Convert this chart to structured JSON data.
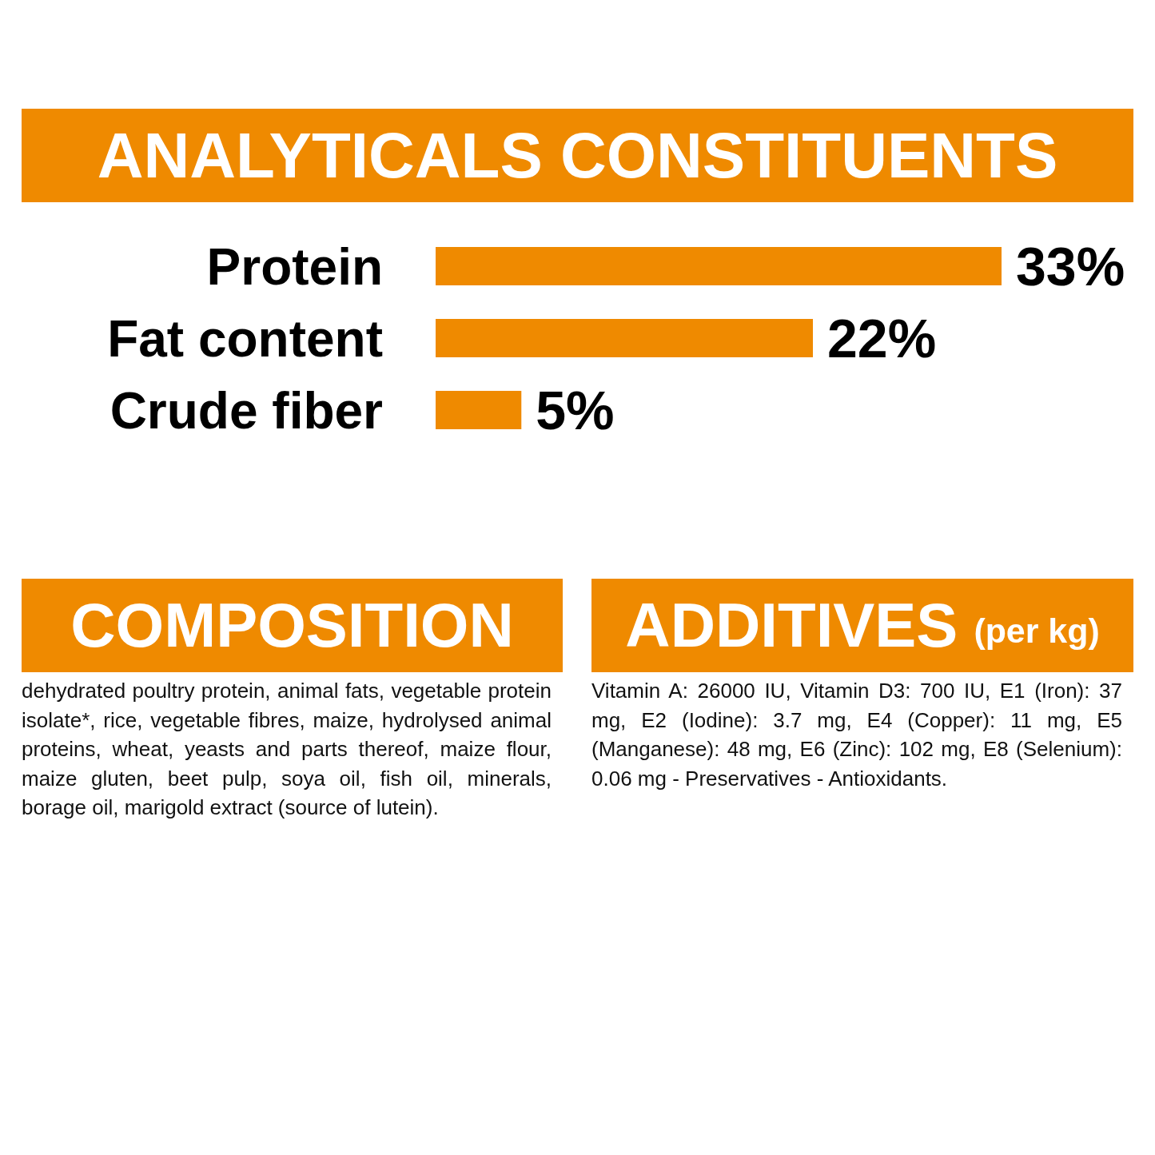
{
  "chart_data": [
    {
      "type": "bar",
      "title": "ANALYTICALS CONSTITUENTS",
      "orientation": "horizontal",
      "categories": [
        "Protein",
        "Fat content",
        "Crude fiber"
      ],
      "values": [
        33,
        22,
        5
      ],
      "color": "#ef8a00",
      "value_labels": [
        "33%",
        "22%",
        "5%"
      ],
      "tick_labels": "y"
    },
    {
      "type": "other",
      "title": "COMPOSITION",
      "color": "#ef8a00",
      "annotations": [
        "dehydrated poultry protein, animal fats, vegetable protein isolate*, rice, vegetable fibres, maize, hydrolysed animal proteins, wheat, yeasts and parts thereof, maize flour, maize gluten, beet pulp, soya oil, fish oil, minerals, borage oil, marigold extract (source of lutein)."
      ]
    },
    {
      "type": "other",
      "title": "ADDITIVES",
      "subtitle": "(per kg)",
      "color": "#ef8a00",
      "annotations": [
        "Vitamin A: 26000 IU, Vitamin D3: 700 IU, E1 (Iron): 37 mg, E2 (Iodine): 3.7 mg, E4 (Copper): 11 mg, E5 (Manganese): 48 mg, E6 (Zinc): 102 mg, E8 (Selenium): 0.06 mg - Preservatives - Antioxidants."
      ]
    }
  ]
}
